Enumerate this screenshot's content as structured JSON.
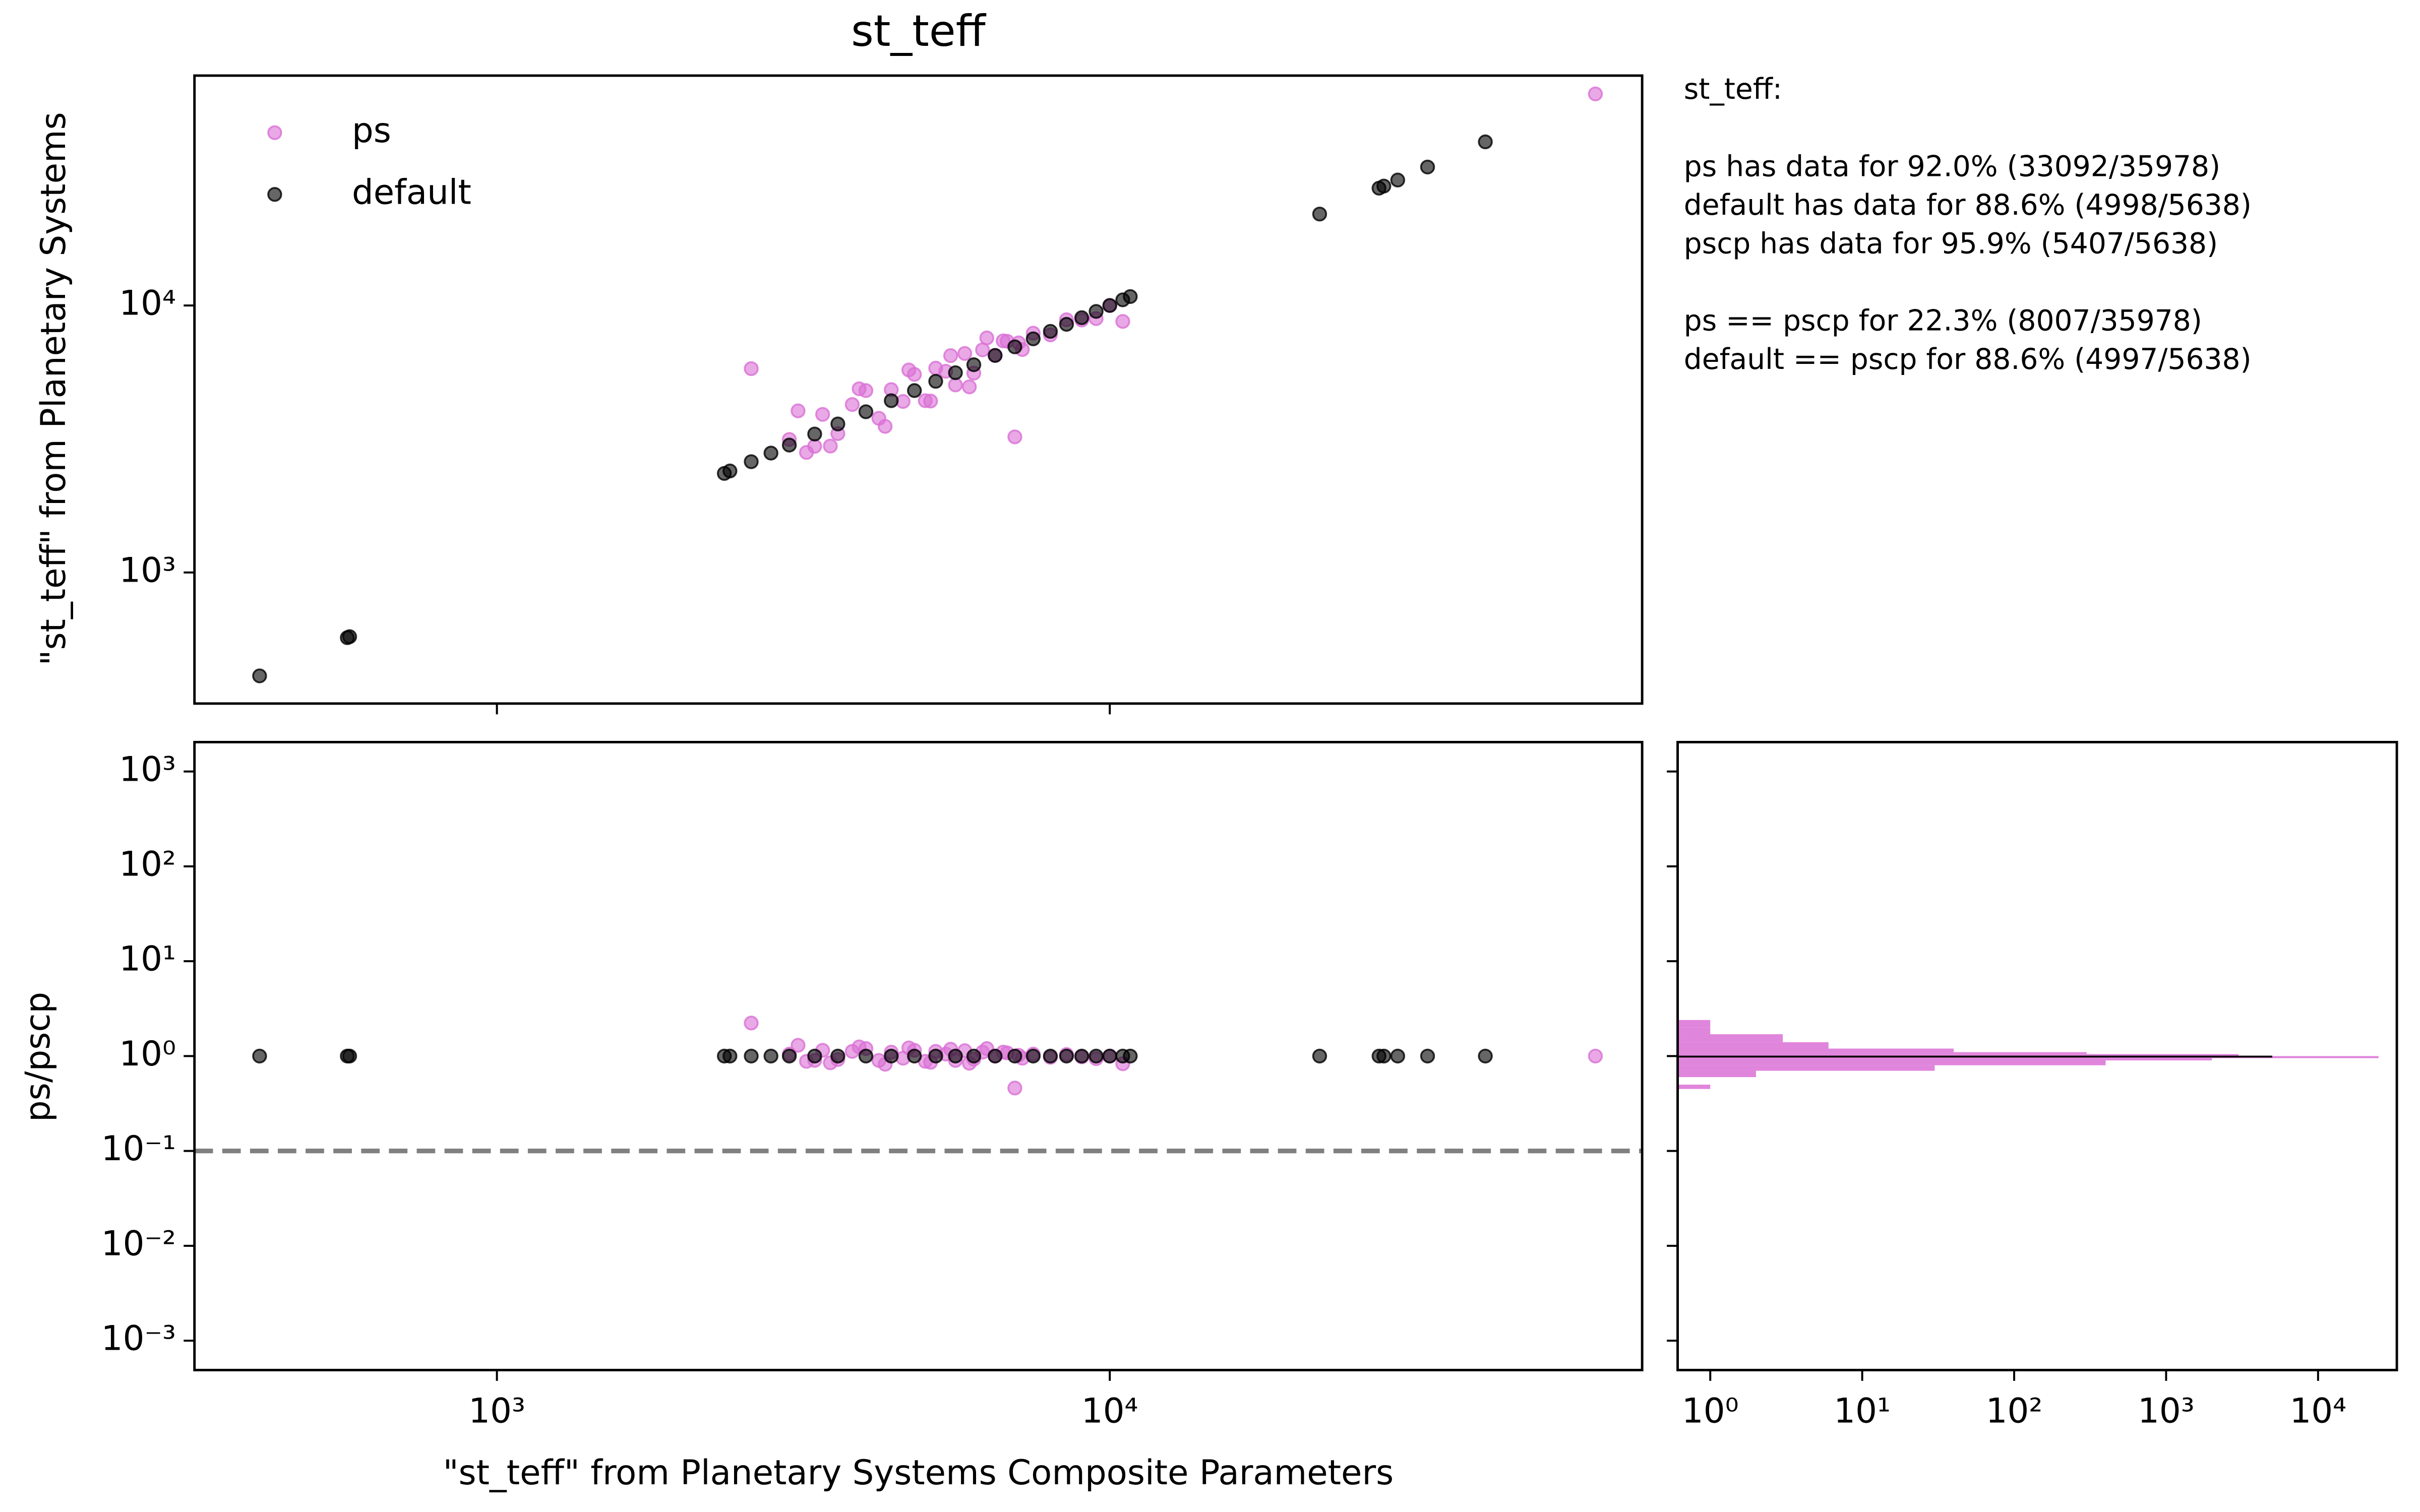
{
  "stats": {
    "lines": [
      "st_teff:",
      "ps has data for 92.0% (33092/35978)",
      "default has data for 88.6% (4998/5638)",
      "pscp has data for 95.9% (5407/5638)",
      "ps == pscp  for 22.3% (8007/35978)",
      "default == pscp  for 88.6% (4997/5638)"
    ]
  },
  "chart_data": [
    {
      "type": "scatter",
      "title": "st_teff",
      "ylabel": "\"st_teff\" from Planetary Systems",
      "log": true,
      "legend": "upper left",
      "xlim": [
        321,
        73900
      ],
      "ylim": [
        323,
        72600
      ],
      "yticks": [
        {
          "value": 1000,
          "label": "10³"
        },
        {
          "value": 10000,
          "label": "10⁴"
        }
      ],
      "series": [
        {
          "name": "ps",
          "color": "#da70d6",
          "x": [
            2600,
            3000,
            3200,
            3400,
            3600,
            3800,
            4000,
            4200,
            4400,
            4600,
            4800,
            5000,
            5200,
            5400,
            5600,
            5800,
            6000,
            6200,
            6500,
            6800,
            7000,
            7200,
            7500,
            8000,
            8500,
            9000,
            9500,
            10000,
            10500,
            3100,
            3500,
            3900,
            4300,
            4700,
            5100,
            5500,
            5900,
            6300,
            6700,
            3300,
            7100,
            62000
          ],
          "values": [
            5800,
            3150,
            2816,
            3910,
            3312,
            4256,
            4800,
            3780,
            4840,
            4370,
            5520,
            4400,
            5824,
            5670,
            5040,
            6612,
            5580,
            6820,
            6500,
            7344,
            3220,
            6840,
            7875,
            7760,
            8840,
            8820,
            8930,
            10000,
            8715,
            4030,
            2975,
            4875,
            3526,
            5734,
            4386,
            6490,
            4956,
            7560,
            7370,
            2970,
            7242,
            62000
          ]
        },
        {
          "name": "default",
          "color": "#000000",
          "x": [
            410,
            570,
            575,
            2350,
            2400,
            2600,
            2800,
            3000,
            3300,
            3600,
            4000,
            4400,
            4800,
            5200,
            5600,
            6000,
            6500,
            7000,
            7500,
            8000,
            8500,
            9000,
            9500,
            10000,
            10500,
            10800,
            22000,
            27500,
            28000,
            29500,
            33000,
            41000
          ],
          "values": [
            410,
            570,
            575,
            2350,
            2400,
            2600,
            2800,
            3000,
            3300,
            3600,
            4000,
            4400,
            4800,
            5200,
            5600,
            6000,
            6500,
            7000,
            7500,
            8000,
            8500,
            9000,
            9500,
            10000,
            10500,
            10800,
            22000,
            27500,
            28000,
            29500,
            33000,
            41000
          ]
        }
      ]
    },
    {
      "type": "scatter",
      "xlabel": "\"st_teff\" from Planetary Systems Composite Parameters",
      "ylabel": "ps/pscp",
      "log": true,
      "reference_line": 0.1,
      "xlim": [
        321,
        73900
      ],
      "ylim": [
        0.00049,
        2040
      ],
      "xticks": [
        {
          "value": 1000,
          "label": "10³"
        },
        {
          "value": 10000,
          "label": "10⁴"
        }
      ],
      "yticks": [
        {
          "value": 0.001,
          "label": "10⁻³"
        },
        {
          "value": 0.01,
          "label": "10⁻²"
        },
        {
          "value": 0.1,
          "label": "10⁻¹"
        },
        {
          "value": 1,
          "label": "10⁰"
        },
        {
          "value": 10,
          "label": "10¹"
        },
        {
          "value": 100,
          "label": "10²"
        },
        {
          "value": 1000,
          "label": "10³"
        }
      ],
      "series": [
        {
          "color": "#da70d6",
          "x": [
            2600,
            3000,
            3200,
            3400,
            3600,
            3800,
            4000,
            4200,
            4400,
            4600,
            4800,
            5000,
            5200,
            5400,
            5600,
            5800,
            6000,
            6200,
            6500,
            6800,
            7000,
            7200,
            7500,
            8000,
            8500,
            9000,
            9500,
            10000,
            10500,
            3100,
            3500,
            3900,
            4300,
            4700,
            5100,
            5500,
            5900,
            6300,
            6700,
            3300,
            7100,
            62000
          ],
          "values": [
            2.23,
            1.05,
            0.88,
            1.15,
            0.92,
            1.12,
            1.2,
            0.9,
            1.1,
            0.95,
            1.15,
            0.88,
            1.12,
            1.05,
            0.9,
            1.14,
            0.93,
            1.1,
            1.0,
            1.08,
            0.46,
            0.95,
            1.05,
            0.97,
            1.04,
            0.98,
            0.94,
            1.0,
            0.83,
            1.3,
            0.85,
            1.25,
            0.82,
            1.22,
            0.86,
            1.18,
            0.84,
            1.2,
            1.1,
            0.9,
            1.02,
            1.0
          ]
        },
        {
          "color": "#000000",
          "x": [
            410,
            570,
            575,
            2350,
            2400,
            2600,
            2800,
            3000,
            3300,
            3600,
            4000,
            4400,
            4800,
            5200,
            5600,
            6000,
            6500,
            7000,
            7500,
            8000,
            8500,
            9000,
            9500,
            10000,
            10500,
            10800,
            22000,
            27500,
            28000,
            29500,
            33000,
            41000
          ],
          "values": [
            1,
            1,
            1,
            1,
            1,
            1,
            1,
            1,
            1,
            1,
            1,
            1,
            1,
            1,
            1,
            1,
            1,
            1,
            1,
            1,
            1,
            1,
            1,
            1,
            1,
            1,
            1,
            1,
            1,
            1,
            1,
            1
          ]
        }
      ]
    },
    {
      "type": "histogram",
      "orientation": "horizontal",
      "log": true,
      "xlim": [
        0.61,
        33000
      ],
      "ylim": [
        0.00049,
        2040
      ],
      "xticks": [
        {
          "value": 1,
          "label": "10⁰"
        },
        {
          "value": 10,
          "label": "10¹"
        },
        {
          "value": 100,
          "label": "10²"
        },
        {
          "value": 1000,
          "label": "10³"
        },
        {
          "value": 10000,
          "label": "10⁴"
        }
      ],
      "series": [
        {
          "color": "#da70d6",
          "bins": [
            0.45,
            0.5,
            0.6,
            0.7,
            0.8,
            0.9,
            0.95,
            1.0,
            1.05,
            1.1,
            1.2,
            1.4,
            1.7,
            2.0,
            2.4
          ],
          "counts": [
            1,
            0,
            2,
            30,
            400,
            2000,
            25000,
            3000,
            300,
            40,
            6,
            3,
            1,
            1
          ]
        },
        {
          "color": "#000000",
          "bins": [
            0.99,
            1.01
          ],
          "counts": [
            4997
          ]
        }
      ]
    }
  ]
}
